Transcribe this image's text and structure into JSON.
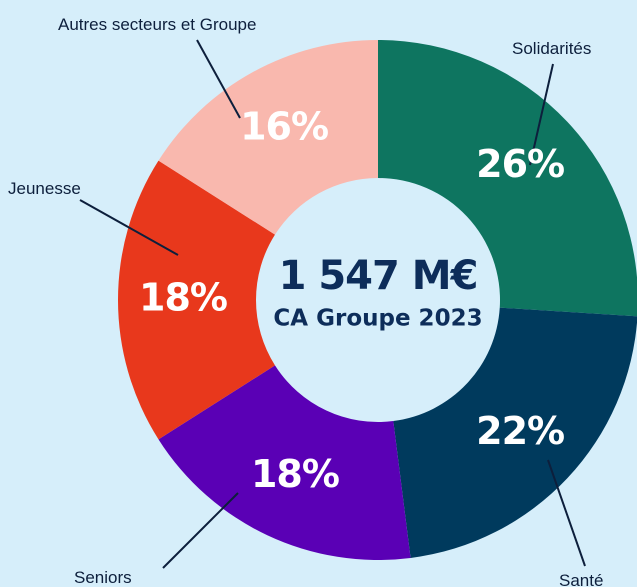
{
  "chart_data": {
    "type": "donut",
    "center_title": "1 547 M€",
    "center_subtitle": "CA Groupe 2023",
    "categories": [
      "Solidarités",
      "Santé",
      "Seniors",
      "Jeunesse",
      "Autres secteurs et Groupe"
    ],
    "values": [
      26,
      22,
      18,
      18,
      16
    ],
    "value_labels": [
      "26%",
      "22%",
      "18%",
      "18%",
      "16%"
    ],
    "colors": [
      "#0e7560",
      "#003a5d",
      "#5a00b5",
      "#e8381c",
      "#f9b8ae"
    ]
  }
}
